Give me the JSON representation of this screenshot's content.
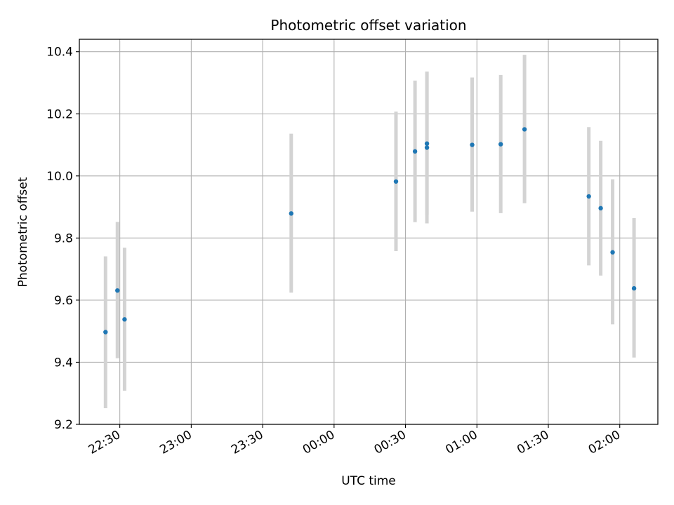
{
  "chart_data": {
    "type": "scatter",
    "title": "Photometric offset variation",
    "xlabel": "UTC time",
    "ylabel": "Photometric offset",
    "x_ticks": [
      {
        "value": 30,
        "label": "22:30"
      },
      {
        "value": 60,
        "label": "23:00"
      },
      {
        "value": 90,
        "label": "23:30"
      },
      {
        "value": 120,
        "label": "00:00"
      },
      {
        "value": 150,
        "label": "00:30"
      },
      {
        "value": 180,
        "label": "01:00"
      },
      {
        "value": 210,
        "label": "01:30"
      },
      {
        "value": 240,
        "label": "02:00"
      }
    ],
    "xlim": [
      13,
      256
    ],
    "ylim": [
      9.2,
      10.44
    ],
    "y_ticks": [
      {
        "value": 9.2,
        "label": "9.2"
      },
      {
        "value": 9.4,
        "label": "9.4"
      },
      {
        "value": 9.6,
        "label": "9.6"
      },
      {
        "value": 9.8,
        "label": "9.8"
      },
      {
        "value": 10.0,
        "label": "10.0"
      },
      {
        "value": 10.2,
        "label": "10.2"
      },
      {
        "value": 10.4,
        "label": "10.4"
      }
    ],
    "grid": true,
    "series": [
      {
        "x": [
          "22:24",
          "22:29",
          "22:32",
          "23:42",
          "00:26",
          "00:34",
          "00:39",
          "00:39",
          "00:58",
          "01:10",
          "01:20",
          "01:47",
          "01:52",
          "01:57",
          "02:06"
        ],
        "y": [
          9.497,
          9.631,
          9.538,
          9.879,
          9.982,
          10.079,
          10.104,
          10.091,
          10.1,
          10.102,
          10.15,
          9.934,
          9.896,
          9.754,
          9.638
        ],
        "y_err_low": [
          9.252,
          9.413,
          9.308,
          9.624,
          9.758,
          9.851,
          9.847,
          9.875,
          9.885,
          9.88,
          9.912,
          9.712,
          9.679,
          9.522,
          9.415
        ],
        "y_err_high": [
          9.741,
          9.852,
          9.769,
          10.136,
          10.207,
          10.307,
          10.336,
          10.336,
          10.317,
          10.325,
          10.39,
          10.157,
          10.113,
          9.989,
          9.864
        ],
        "marker_color": "#1f77b4",
        "errorbar_color": "#d3d3d3"
      }
    ]
  },
  "colors": {
    "grid": "#b0b0b0",
    "axes": "#000000",
    "marker": "#1f77b4",
    "errorbar": "#d3d3d3"
  }
}
